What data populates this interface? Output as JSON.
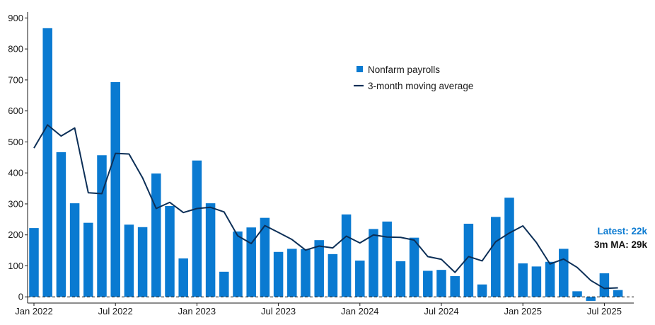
{
  "chart_data": {
    "type": "bar",
    "title": "",
    "xlabel": "",
    "ylabel": "",
    "ylim": [
      -20,
      910
    ],
    "yticks": [
      0,
      100,
      200,
      300,
      400,
      500,
      600,
      700,
      800,
      900
    ],
    "x_tick_labels": [
      {
        "index": 0,
        "label": "Jan 2022"
      },
      {
        "index": 6,
        "label": "Jul 2022"
      },
      {
        "index": 12,
        "label": "Jan 2023"
      },
      {
        "index": 18,
        "label": "Jul 2023"
      },
      {
        "index": 24,
        "label": "Jan 2024"
      },
      {
        "index": 30,
        "label": "Jul 2024"
      },
      {
        "index": 36,
        "label": "Jan 2025"
      },
      {
        "index": 42,
        "label": "Jul 2025"
      }
    ],
    "categories": [
      "2022-01",
      "2022-02",
      "2022-03",
      "2022-04",
      "2022-05",
      "2022-06",
      "2022-07",
      "2022-08",
      "2022-09",
      "2022-10",
      "2022-11",
      "2022-12",
      "2023-01",
      "2023-02",
      "2023-03",
      "2023-04",
      "2023-05",
      "2023-06",
      "2023-07",
      "2023-08",
      "2023-09",
      "2023-10",
      "2023-11",
      "2023-12",
      "2024-01",
      "2024-02",
      "2024-03",
      "2024-04",
      "2024-05",
      "2024-06",
      "2024-07",
      "2024-08",
      "2024-09",
      "2024-10",
      "2024-11",
      "2024-12",
      "2025-01",
      "2025-02",
      "2025-03",
      "2025-04",
      "2025-05",
      "2025-06",
      "2025-07",
      "2025-08"
    ],
    "series": [
      {
        "name": "Nonfarm payrolls",
        "kind": "bar",
        "color": "#0a7ad1",
        "values": [
          222,
          867,
          467,
          302,
          239,
          457,
          693,
          233,
          225,
          398,
          293,
          124,
          440,
          302,
          81,
          211,
          224,
          255,
          145,
          155,
          154,
          183,
          138,
          266,
          117,
          219,
          243,
          115,
          191,
          84,
          87,
          67,
          236,
          40,
          258,
          320,
          108,
          98,
          113,
          155,
          18,
          -13,
          76,
          22
        ]
      },
      {
        "name": "3-month moving average",
        "kind": "line",
        "color": "#0c2f57",
        "values": [
          480,
          555,
          519,
          545,
          336,
          333,
          463,
          461,
          384,
          285,
          305,
          272,
          285,
          289,
          274,
          197,
          172,
          230,
          208,
          185,
          151,
          164,
          158,
          196,
          174,
          200,
          193,
          192,
          183,
          130,
          121,
          79,
          130,
          116,
          178,
          206,
          229,
          175,
          106,
          122,
          95,
          53,
          27,
          29
        ]
      }
    ],
    "legend": {
      "position": "top-center",
      "entries": [
        "Nonfarm payrolls",
        "3-month moving average"
      ]
    },
    "annotations": {
      "latest": "Latest: 22k",
      "ma": "3m MA: 29k"
    },
    "colors": {
      "bar": "#0a7ad1",
      "line": "#0c2f57",
      "latest_text": "#0a7ad1",
      "ma_text": "#111111",
      "axis": "#1a1a1a"
    }
  }
}
